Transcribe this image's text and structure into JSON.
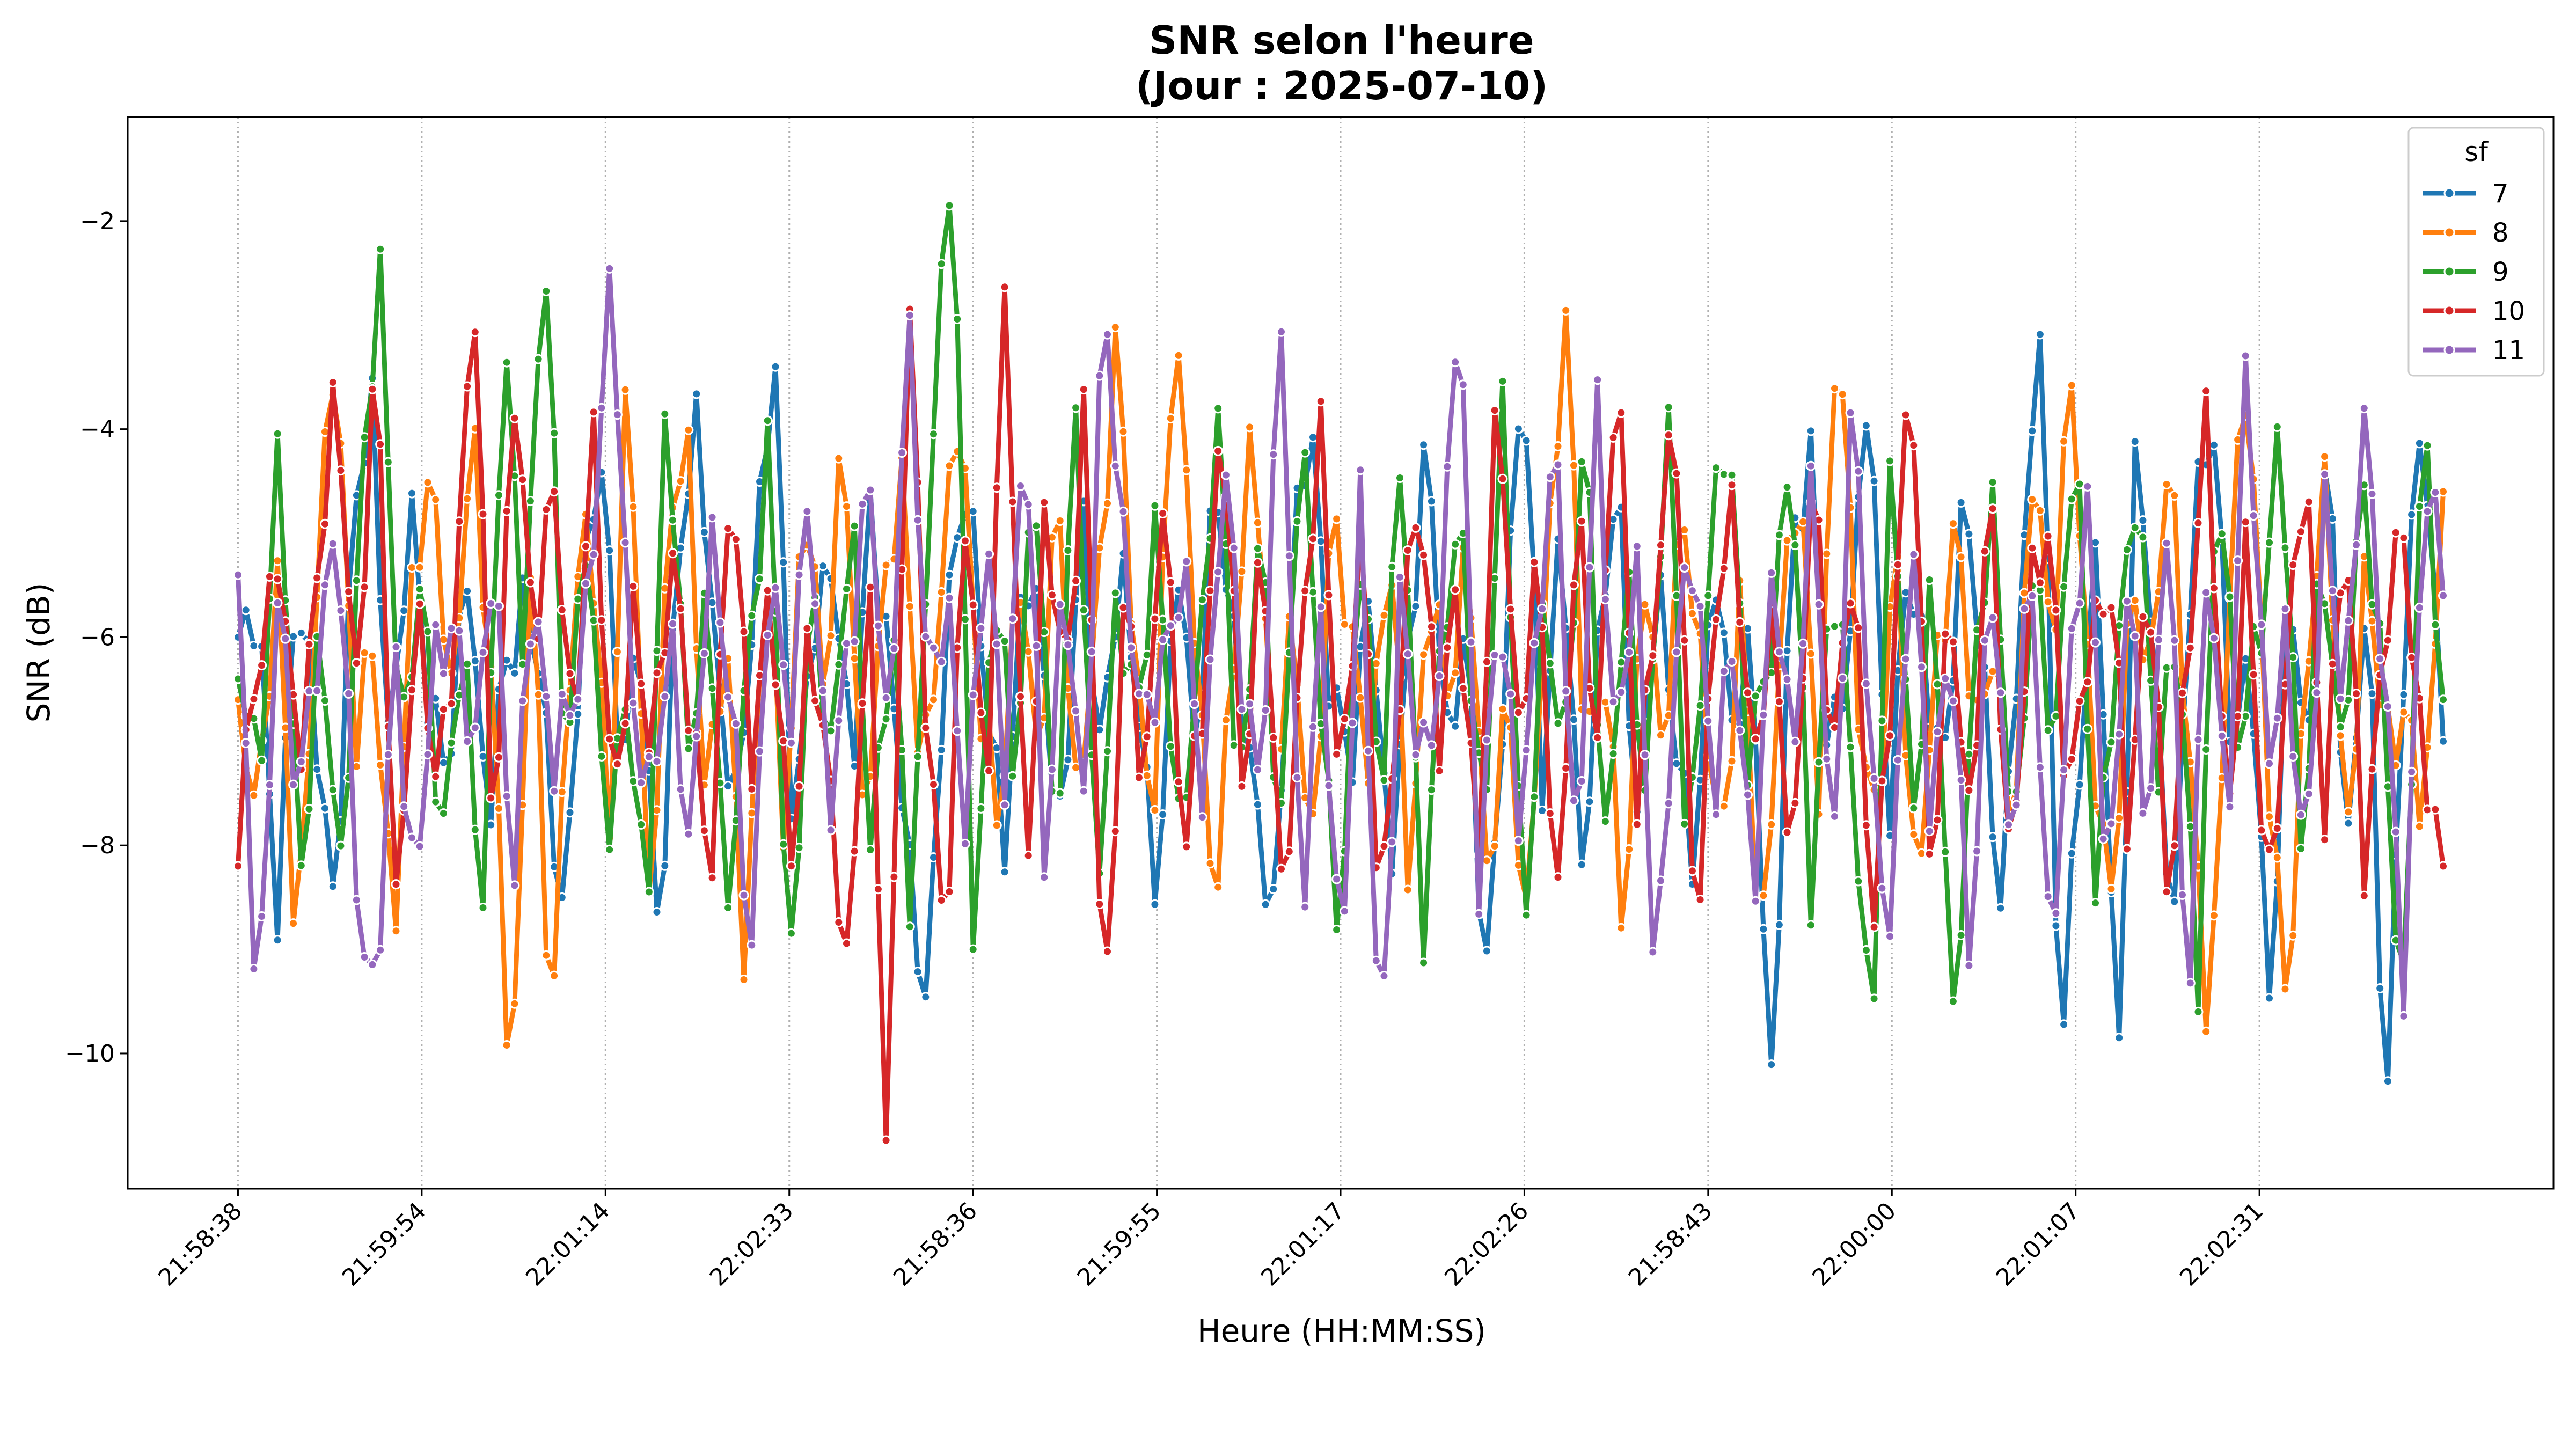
{
  "chart_data": {
    "type": "line",
    "title": "SNR selon l'heure",
    "subtitle": "(Jour : 2025-07-10)",
    "xlabel": "Heure (HH:MM:SS)",
    "ylabel": "SNR (dB)",
    "ylim": [
      -11.3,
      -1.0
    ],
    "yticks": [
      -10,
      -8,
      -6,
      -4,
      -2
    ],
    "x_ticks": [
      "21:58:38",
      "21:59:54",
      "22:01:14",
      "22:02:33",
      "21:58:36",
      "21:59:55",
      "22:01:17",
      "22:02:26",
      "21:58:43",
      "22:00:00",
      "22:01:07",
      "22:02:31"
    ],
    "x_range": [
      -0.6,
      12.6
    ],
    "grid": "x-dotted",
    "legend": {
      "title": "sf",
      "placement": "top-right"
    },
    "series": [
      {
        "name": "7",
        "color": "#1f77b4",
        "anchors": [
          -6.0,
          -5.5,
          -9.0,
          -5.2,
          -7.0,
          -8.5,
          -5.0,
          -3.8,
          -7.2,
          -4.8,
          -6.5,
          -7.5,
          -5.0,
          -8.0,
          -6.2,
          -5.5,
          -7.0,
          -8.6,
          -5.8,
          -4.0,
          -7.5,
          -6.0,
          -9.0,
          -5.2,
          -3.6,
          -6.8,
          -7.4,
          -5.5,
          -3.2,
          -8.0,
          -6.0,
          -5.0,
          -7.6,
          -4.5,
          -6.5,
          -8.2,
          -9.5,
          -5.8,
          -4.2,
          -6.8,
          -7.8,
          -5.4,
          -6.2,
          -8.0,
          -4.8,
          -7.0,
          -5.5,
          -6.5,
          -8.8,
          -5.0,
          -7.2,
          -4.5,
          -6.0,
          -7.8,
          -8.5,
          -5.5,
          -3.8,
          -6.6,
          -7.4,
          -5.2,
          -8.6,
          -6.0,
          -4.2,
          -7.0,
          -5.8,
          -9.6,
          -6.4,
          -3.4,
          -7.2,
          -5.0,
          -8.2,
          -6.0,
          -4.6,
          -7.8,
          -5.6,
          -6.8,
          -8.5,
          -5.0,
          -7.0,
          -6.2,
          -10.4,
          -5.4,
          -4.0,
          -7.5,
          -6.0,
          -3.4,
          -8.0,
          -5.2,
          -6.6,
          -7.0,
          -4.8,
          -6.2,
          -8.8,
          -5.6,
          -2.6,
          -10.4,
          -7.0,
          -5.2,
          -10.3,
          -4.0,
          -6.6,
          -8.6,
          -5.0,
          -3.6,
          -7.4,
          -6.0,
          -9.8,
          -5.4,
          -7.0,
          -4.2,
          -8.0,
          -5.6,
          -10.6,
          -6.0,
          -3.8,
          -7.0
        ],
        "values_shown": [
          -6.0,
          -7.0
        ]
      },
      {
        "name": "8",
        "color": "#ff7f0e",
        "anchors": [
          -6.6,
          -7.5,
          -5.6,
          -8.9,
          -5.8,
          -3.0,
          -7.0,
          -6.2,
          -8.8,
          -5.5,
          -4.2,
          -7.0,
          -3.7,
          -6.5,
          -10.7,
          -5.0,
          -10.1,
          -6.0,
          -4.9,
          -7.8,
          -3.3,
          -8.8,
          -5.2,
          -4.1,
          -7.5,
          -6.2,
          -9.0,
          -5.4,
          -7.8,
          -4.6,
          -6.6,
          -3.8,
          -8.0,
          -5.5,
          -4.7,
          -7.2,
          -5.8,
          -3.6,
          -6.6,
          -8.0,
          -5.0,
          -7.6,
          -4.2,
          -8.0,
          -5.6,
          -3.1,
          -6.5,
          -7.4,
          -2.9,
          -5.5,
          -9.0,
          -6.0,
          -4.0,
          -7.2,
          -5.8,
          -8.4,
          -4.6,
          -6.2,
          -7.0,
          -5.2,
          -8.2,
          -5.6,
          -6.6,
          -4.9,
          -8.6,
          -6.2,
          -9.1,
          -5.4,
          -2.9,
          -7.0,
          -6.2,
          -9.1,
          -5.0,
          -7.5,
          -4.4,
          -6.6,
          -8.0,
          -5.6,
          -9.3,
          -6.0,
          -4.6,
          -7.2,
          -2.9,
          -6.4,
          -8.0,
          -5.0,
          -8.6,
          -6.5,
          -4.6,
          -7.2,
          -5.8,
          -8.2,
          -4.0,
          -6.2,
          -3.4,
          -7.0,
          -8.8,
          -5.2,
          -6.6,
          -3.9,
          -7.4,
          -9.9,
          -5.6,
          -3.5,
          -7.0,
          -9.9,
          -6.0,
          -4.6,
          -8.0,
          -5.4,
          -7.0,
          -6.6,
          -8.0,
          -4.6
        ]
      },
      {
        "name": "9",
        "color": "#2ca02c",
        "anchors": [
          -6.4,
          -7.2,
          -4.2,
          -8.3,
          -6.0,
          -8.4,
          -4.7,
          -2.6,
          -7.0,
          -5.6,
          -7.8,
          -6.2,
          -8.6,
          -3.2,
          -6.0,
          -2.1,
          -7.2,
          -4.9,
          -8.0,
          -6.4,
          -9.0,
          -3.3,
          -7.4,
          -5.4,
          -8.6,
          -6.0,
          -4.2,
          -9.4,
          -5.6,
          -7.2,
          -4.6,
          -8.2,
          -5.6,
          -9.0,
          -3.8,
          -1.4,
          -9.0,
          -5.6,
          -7.2,
          -4.4,
          -8.2,
          -3.6,
          -8.6,
          -5.6,
          -7.0,
          -4.6,
          -8.2,
          -6.2,
          -3.8,
          -7.6,
          -5.0,
          -8.0,
          -4.0,
          -6.6,
          -8.8,
          -5.2,
          -7.4,
          -4.2,
          -8.8,
          -6.0,
          -5.0,
          -8.2,
          -3.4,
          -9.2,
          -5.6,
          -7.0,
          -4.0,
          -8.0,
          -5.6,
          -7.4,
          -3.9,
          -8.0,
          -5.6,
          -3.7,
          -7.4,
          -6.2,
          -4.0,
          -8.6,
          -5.2,
          -7.2,
          -9.8,
          -4.2,
          -7.6,
          -5.6,
          -9.5,
          -6.6,
          -4.6,
          -8.2,
          -5.2,
          -7.0,
          -4.0,
          -8.4,
          -6.4,
          -4.2,
          -7.6,
          -5.6,
          -9.6,
          -4.0,
          -7.2,
          -6.0,
          -3.8,
          -8.2,
          -5.0,
          -7.4,
          -4.2,
          -6.6,
          -9.6,
          -4.0,
          -6.6
        ],
        "values_shown": [
          -6.4,
          -6.6
        ]
      },
      {
        "name": "10",
        "color": "#d62728",
        "anchors": [
          -8.2,
          -6.2,
          -5.1,
          -7.4,
          -5.3,
          -3.8,
          -6.4,
          -3.3,
          -8.6,
          -5.8,
          -7.4,
          -5.9,
          -2.7,
          -8.0,
          -3.7,
          -5.8,
          -4.6,
          -7.0,
          -3.9,
          -7.8,
          -5.6,
          -7.4,
          -4.9,
          -7.0,
          -8.2,
          -4.4,
          -7.2,
          -5.4,
          -8.4,
          -5.8,
          -7.6,
          -9.1,
          -5.4,
          -11.1,
          -2.6,
          -6.9,
          -8.8,
          -4.7,
          -7.5,
          -2.6,
          -8.2,
          -5.0,
          -6.4,
          -3.8,
          -10.0,
          -5.4,
          -7.8,
          -4.2,
          -8.4,
          -6.4,
          -3.9,
          -7.4,
          -5.0,
          -8.6,
          -6.0,
          -4.2,
          -7.4,
          -5.2,
          -8.4,
          -6.6,
          -4.4,
          -7.0,
          -5.6,
          -8.0,
          -3.6,
          -6.8,
          -5.4,
          -8.6,
          -4.8,
          -7.2,
          -3.0,
          -7.8,
          -5.4,
          -4.0,
          -8.8,
          -6.0,
          -4.6,
          -7.4,
          -5.8,
          -8.2,
          -4.4,
          -7.0,
          -5.4,
          -8.6,
          -6.6,
          -3.1,
          -8.6,
          -5.6,
          -7.8,
          -4.6,
          -8.2,
          -5.8,
          -4.8,
          -7.8,
          -6.0,
          -5.3,
          -8.0,
          -5.0,
          -8.8,
          -6.0,
          -4.0,
          -7.8,
          -5.2,
          -8.6,
          -6.4,
          -4.4,
          -7.6,
          -5.0,
          -8.0,
          -6.2,
          -4.8,
          -7.4,
          -8.2
        ],
        "values_shown": [
          -8.2,
          -8.2
        ]
      },
      {
        "name": "11",
        "color": "#9467bd",
        "anchors": [
          -5.4,
          -10.0,
          -5.3,
          -7.8,
          -6.0,
          -5.0,
          -8.2,
          -9.6,
          -6.2,
          -8.4,
          -6.4,
          -5.6,
          -7.4,
          -4.9,
          -8.6,
          -5.3,
          -7.2,
          -6.8,
          -5.0,
          -2.6,
          -6.4,
          -7.8,
          -5.8,
          -8.3,
          -4.9,
          -6.4,
          -9.4,
          -5.0,
          -7.2,
          -4.2,
          -8.0,
          -6.0,
          -4.4,
          -7.2,
          -2.7,
          -6.6,
          -5.4,
          -8.2,
          -4.6,
          -7.6,
          -3.6,
          -8.4,
          -5.4,
          -7.6,
          -2.8,
          -5.0,
          -7.2,
          -6.0,
          -5.4,
          -7.6,
          -4.2,
          -6.5,
          -7.2,
          -3.0,
          -8.6,
          -6.0,
          -9.2,
          -4.8,
          -10.3,
          -5.6,
          -7.4,
          -6.2,
          -2.6,
          -8.2,
          -5.8,
          -7.6,
          -6.0,
          -4.2,
          -8.4,
          -3.8,
          -7.0,
          -5.4,
          -9.2,
          -6.4,
          -5.0,
          -7.6,
          -6.0,
          -8.4,
          -5.4,
          -7.0,
          -4.6,
          -8.2,
          -3.6,
          -7.4,
          -8.8,
          -5.0,
          -7.6,
          -6.2,
          -9.0,
          -5.4,
          -8.0,
          -5.2,
          -9.1,
          -6.4,
          -4.8,
          -8.4,
          -5.6,
          -7.8,
          -4.8,
          -9.6,
          -5.2,
          -8.0,
          -3.1,
          -7.4,
          -5.8,
          -8.6,
          -4.4,
          -7.0,
          -3.6,
          -6.4,
          -9.4,
          -4.4,
          -5.6
        ],
        "values_shown": [
          -5.4,
          -5.6
        ]
      }
    ]
  }
}
